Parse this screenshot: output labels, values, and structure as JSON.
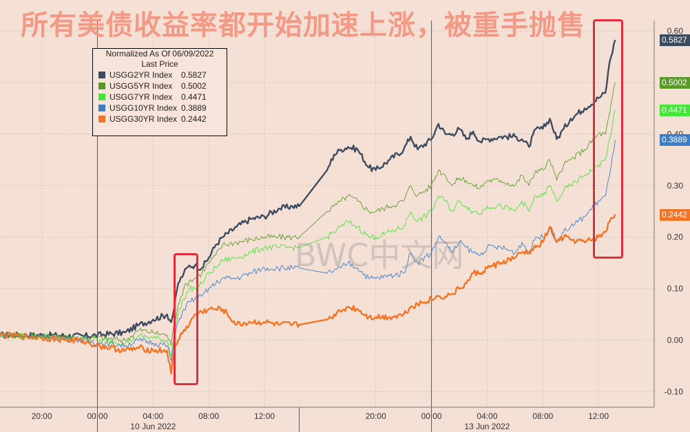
{
  "title": "所有美债收益率都开始加速上涨，被重手抛售",
  "watermark": "BWC中文网",
  "legend": {
    "header1": "Normalized As Of 06/09/2022",
    "header2": "Last Price",
    "items": [
      {
        "name": "USGG2YR Index",
        "value": "0.5827",
        "color": "#3d4b5f"
      },
      {
        "name": "USGG5YR Index",
        "value": "0.5002",
        "color": "#5a9a2a"
      },
      {
        "name": "USGG7YR Index",
        "value": "0.4471",
        "color": "#44e63a"
      },
      {
        "name": "USGG10YR Index",
        "value": "0.3889",
        "color": "#3a7ec8"
      },
      {
        "name": "USGG30YR Index",
        "value": "0.2442",
        "color": "#f07526"
      }
    ]
  },
  "last_price_tags": [
    {
      "text": "0.5827",
      "value": 0.5827,
      "color": "#3d4b5f"
    },
    {
      "text": "0.5002",
      "value": 0.5002,
      "color": "#5a9a2a"
    },
    {
      "text": "0.4471",
      "value": 0.4471,
      "color": "#44e63a"
    },
    {
      "text": "0.3889",
      "value": 0.3889,
      "color": "#3a7ec8"
    },
    {
      "text": "0.2442",
      "value": 0.2442,
      "color": "#f07526"
    }
  ],
  "chart_data": {
    "type": "line",
    "title": "所有美债收益率都开始加速上涨，被重手抛售",
    "y_ticks": [
      "-0.10",
      "0.00",
      "0.10",
      "0.20",
      "0.30",
      "0.40",
      "0.50",
      "0.60"
    ],
    "y_tick_values": [
      -0.1,
      0.0,
      0.1,
      0.2,
      0.3,
      0.4,
      0.5,
      0.6
    ],
    "ylim": [
      -0.13,
      0.62
    ],
    "x_ticks": [
      "20:00",
      "00:00",
      "04:00",
      "08:00",
      "12:00",
      "20:00",
      "00:00",
      "04:00",
      "08:00",
      "12:00"
    ],
    "x_tick_hours": [
      -4,
      0,
      4,
      8,
      12,
      20,
      24,
      28,
      32,
      36
    ],
    "x_groups": [
      {
        "label": "10 Jun 2022",
        "hour": 4
      },
      {
        "label": "13 Jun 2022",
        "hour": 28
      }
    ],
    "x_range_hours": [
      -7,
      40
    ],
    "session_gap_hour": 14.5,
    "grid": true,
    "legend_position": "top-left",
    "series": [
      {
        "name": "USGG2YR Index",
        "color": "#3d4b5f",
        "x": [
          -7,
          -4,
          -1,
          0,
          2,
          3,
          4,
          5,
          5.3,
          5.5,
          5.8,
          6.2,
          6.6,
          7,
          7.5,
          8,
          8.5,
          9,
          10,
          11,
          12,
          13,
          14,
          14.5,
          16.5,
          17,
          17.5,
          18,
          18.7,
          19.5,
          20,
          21,
          22,
          22.5,
          23,
          24,
          24.5,
          25,
          25.5,
          26,
          26.5,
          27,
          27.5,
          28,
          29,
          30,
          30.5,
          31,
          31.5,
          32,
          32.5,
          33,
          33.5,
          34,
          35,
          36,
          36.5,
          36.8,
          37.2
        ],
        "y": [
          0.01,
          0.01,
          0.008,
          0.01,
          0.015,
          0.03,
          0.04,
          0.05,
          0.035,
          0.06,
          0.11,
          0.13,
          0.145,
          0.145,
          0.14,
          0.16,
          0.185,
          0.2,
          0.22,
          0.235,
          0.24,
          0.255,
          0.26,
          0.26,
          0.33,
          0.36,
          0.37,
          0.375,
          0.37,
          0.335,
          0.33,
          0.35,
          0.37,
          0.395,
          0.37,
          0.39,
          0.42,
          0.4,
          0.4,
          0.41,
          0.39,
          0.405,
          0.385,
          0.39,
          0.395,
          0.395,
          0.39,
          0.375,
          0.41,
          0.41,
          0.43,
          0.39,
          0.41,
          0.43,
          0.45,
          0.47,
          0.48,
          0.54,
          0.5827
        ]
      },
      {
        "name": "USGG5YR Index",
        "color": "#5a9a2a",
        "x": [
          -7,
          -4,
          -1,
          0,
          2,
          3,
          4,
          5,
          5.3,
          5.5,
          5.8,
          6.2,
          6.6,
          7,
          7.5,
          8,
          8.5,
          9,
          10,
          11,
          12,
          13,
          14,
          14.5,
          16.5,
          17,
          17.5,
          18,
          18.7,
          19.5,
          20,
          21,
          22,
          22.5,
          23,
          24,
          24.5,
          25,
          25.5,
          26,
          26.5,
          27,
          27.5,
          28,
          29,
          30,
          30.5,
          31,
          31.5,
          32,
          32.5,
          33,
          33.5,
          34,
          35,
          36,
          36.5,
          36.8,
          37.2
        ],
        "y": [
          0.01,
          0.008,
          0.005,
          0.005,
          0.0,
          0.02,
          0.015,
          0.01,
          -0.01,
          0.03,
          0.07,
          0.1,
          0.115,
          0.12,
          0.13,
          0.15,
          0.165,
          0.185,
          0.19,
          0.195,
          0.2,
          0.2,
          0.2,
          0.2,
          0.25,
          0.26,
          0.27,
          0.28,
          0.27,
          0.25,
          0.25,
          0.26,
          0.27,
          0.3,
          0.28,
          0.3,
          0.33,
          0.32,
          0.3,
          0.315,
          0.31,
          0.3,
          0.295,
          0.31,
          0.31,
          0.3,
          0.32,
          0.3,
          0.33,
          0.33,
          0.35,
          0.31,
          0.34,
          0.35,
          0.37,
          0.4,
          0.4,
          0.44,
          0.5002
        ]
      },
      {
        "name": "USGG7YR Index",
        "color": "#44e63a",
        "x": [
          -7,
          -4,
          -1,
          0,
          2,
          3,
          4,
          5,
          5.3,
          5.5,
          5.8,
          6.2,
          6.6,
          7,
          7.5,
          8,
          8.5,
          9,
          10,
          11,
          12,
          13,
          14,
          14.5,
          16.5,
          17,
          17.5,
          18,
          18.7,
          19.5,
          20,
          21,
          22,
          22.5,
          23,
          24,
          24.5,
          25,
          25.5,
          26,
          26.5,
          27,
          27.5,
          28,
          29,
          30,
          30.5,
          31,
          31.5,
          32,
          32.5,
          33,
          33.5,
          34,
          35,
          36,
          36.5,
          36.8,
          37.2
        ],
        "y": [
          0.01,
          0.008,
          0.003,
          0.0,
          -0.005,
          0.008,
          0.005,
          0.0,
          -0.03,
          0.015,
          0.05,
          0.08,
          0.1,
          0.1,
          0.11,
          0.13,
          0.14,
          0.155,
          0.16,
          0.17,
          0.18,
          0.18,
          0.18,
          0.18,
          0.2,
          0.21,
          0.22,
          0.23,
          0.22,
          0.2,
          0.2,
          0.21,
          0.22,
          0.25,
          0.23,
          0.25,
          0.28,
          0.27,
          0.25,
          0.27,
          0.26,
          0.25,
          0.245,
          0.26,
          0.26,
          0.25,
          0.27,
          0.25,
          0.28,
          0.28,
          0.3,
          0.27,
          0.29,
          0.3,
          0.32,
          0.34,
          0.35,
          0.39,
          0.4471
        ]
      },
      {
        "name": "USGG10YR Index",
        "color": "#3a7ec8",
        "x": [
          -7,
          -4,
          -1,
          0,
          2,
          3,
          4,
          5,
          5.3,
          5.5,
          5.8,
          6.2,
          6.6,
          7,
          7.5,
          8,
          8.5,
          9,
          10,
          11,
          12,
          13,
          14,
          14.5,
          16.5,
          17,
          17.5,
          18,
          18.7,
          19.5,
          20,
          21,
          22,
          22.5,
          23,
          24,
          24.5,
          25,
          25.5,
          26,
          26.5,
          27,
          27.5,
          28,
          29,
          30,
          30.5,
          31,
          31.5,
          32,
          32.5,
          33,
          33.5,
          34,
          35,
          36,
          36.5,
          36.8,
          37.2
        ],
        "y": [
          0.01,
          0.006,
          0.0,
          -0.005,
          -0.01,
          0.0,
          -0.005,
          -0.01,
          -0.04,
          0.0,
          0.035,
          0.06,
          0.075,
          0.08,
          0.085,
          0.1,
          0.11,
          0.12,
          0.12,
          0.13,
          0.14,
          0.14,
          0.14,
          0.14,
          0.13,
          0.135,
          0.14,
          0.15,
          0.14,
          0.12,
          0.12,
          0.125,
          0.13,
          0.17,
          0.15,
          0.17,
          0.2,
          0.19,
          0.17,
          0.19,
          0.18,
          0.17,
          0.165,
          0.18,
          0.18,
          0.17,
          0.19,
          0.17,
          0.2,
          0.2,
          0.22,
          0.19,
          0.21,
          0.22,
          0.24,
          0.27,
          0.28,
          0.32,
          0.3889
        ]
      },
      {
        "name": "USGG30YR Index",
        "color": "#f07526",
        "x": [
          -7,
          -4,
          -1,
          0,
          2,
          3,
          4,
          5,
          5.3,
          5.5,
          5.8,
          6.2,
          6.6,
          7,
          7.5,
          8,
          8.5,
          9,
          10,
          11,
          12,
          13,
          14,
          14.5,
          16.5,
          17,
          17.5,
          18,
          18.7,
          19.5,
          20,
          21,
          22,
          22.5,
          23,
          24,
          24.5,
          25,
          25.5,
          26,
          26.5,
          27,
          27.5,
          28,
          29,
          30,
          30.5,
          31,
          31.5,
          32,
          32.5,
          33,
          33.5,
          34,
          35,
          36,
          36.5,
          36.8,
          37.2
        ],
        "y": [
          0.01,
          0.005,
          -0.002,
          -0.01,
          -0.02,
          -0.015,
          -0.02,
          -0.02,
          -0.065,
          -0.02,
          0.0,
          0.02,
          0.03,
          0.05,
          0.055,
          0.06,
          0.06,
          0.06,
          0.03,
          0.035,
          0.035,
          0.03,
          0.03,
          0.03,
          0.04,
          0.05,
          0.055,
          0.065,
          0.06,
          0.045,
          0.045,
          0.045,
          0.05,
          0.065,
          0.07,
          0.08,
          0.085,
          0.085,
          0.09,
          0.1,
          0.11,
          0.13,
          0.13,
          0.14,
          0.15,
          0.16,
          0.17,
          0.17,
          0.18,
          0.19,
          0.22,
          0.19,
          0.2,
          0.195,
          0.19,
          0.2,
          0.21,
          0.23,
          0.2442
        ]
      }
    ]
  }
}
